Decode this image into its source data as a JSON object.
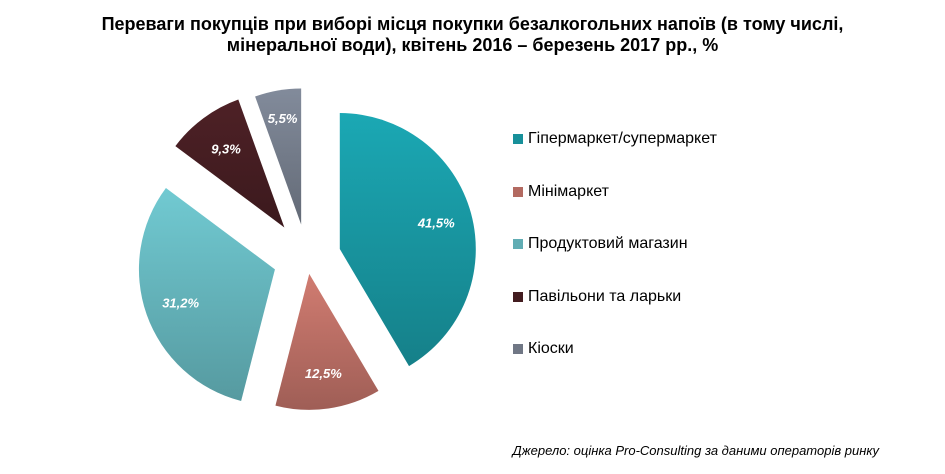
{
  "chart_data": {
    "type": "pie",
    "title_lines": [
      "Переваги покупців при виборі місця покупки безалкогольних напоїв (в тому числі,",
      "мінеральної води), квітень 2016 – березень 2017 рр., %"
    ],
    "slices": [
      {
        "name": "Гіпермаркет/супермаркет",
        "value": 41.5,
        "label": "41,5%",
        "color": "#1aa0ab"
      },
      {
        "name": "Мінімаркет",
        "value": 12.5,
        "label": "12,5%",
        "color": "#c7766c"
      },
      {
        "name": "Продуктовий магазин",
        "value": 31.2,
        "label": "31,2%",
        "color": "#6cc0c8"
      },
      {
        "name": "Павільони та ларьки",
        "value": 9.3,
        "label": "9,3%",
        "color": "#4a1f24"
      },
      {
        "name": "Кіоски",
        "value": 5.5,
        "label": "5,5%",
        "color": "#7c8494"
      }
    ],
    "exploded": true,
    "legend_position": "right",
    "source": "Джерело: оцінка Pro-Consulting за даними операторів ринку"
  }
}
